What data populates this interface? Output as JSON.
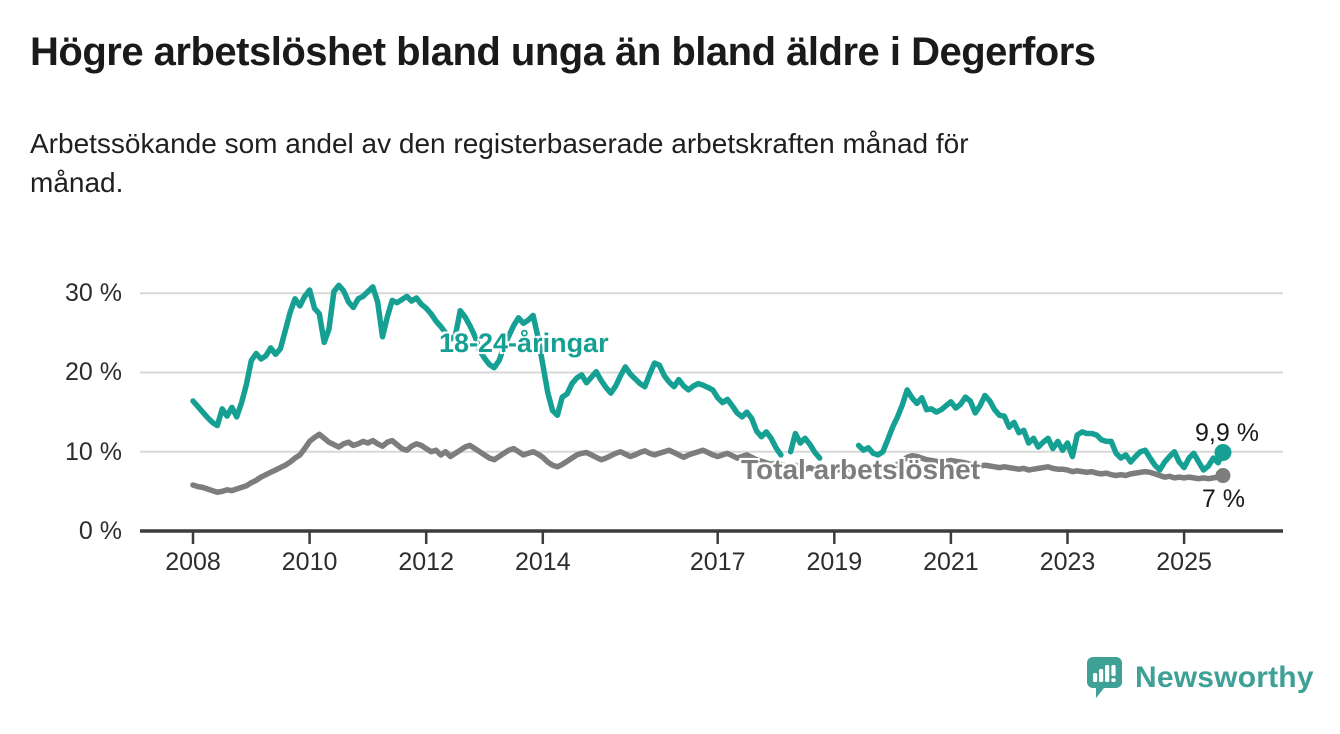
{
  "chart_data": {
    "type": "line",
    "title": "Högre arbetslöshet bland unga än bland äldre i Degerfors",
    "subtitle": "Arbetssökande som andel av den registerbaserade arbetskraften månad för månad.",
    "grid": "horizontal",
    "xlim": [
      2008,
      2026
    ],
    "ylim": [
      0,
      32
    ],
    "x_start": 2008,
    "points_per_year": 12,
    "x_tick_years": [
      2008,
      2010,
      2012,
      2014,
      2017,
      2019,
      2021,
      2023,
      2025
    ],
    "x_tick_labels": [
      "2008",
      "2010",
      "2012",
      "2014",
      "2017",
      "2019",
      "2021",
      "2023",
      "2025"
    ],
    "y_ticks": [
      {
        "value": 0,
        "label": "0 %"
      },
      {
        "value": 10,
        "label": "10 %"
      },
      {
        "value": 20,
        "label": "20 %"
      },
      {
        "value": 30,
        "label": "30 %"
      }
    ],
    "colors": {
      "youth": "#16a094",
      "total": "#7d7d7d",
      "grid": "#d8d8d8",
      "axis": "#3c3c3c"
    },
    "series": [
      {
        "id": "youth",
        "name": "18-24-åringar",
        "color": "#16a094",
        "end_value": 9.9,
        "end_label": "9,9 %",
        "values": [
          16.4,
          15.7,
          15.0,
          14.3,
          13.7,
          13.3,
          15.4,
          14.5,
          15.6,
          14.4,
          16.2,
          18.5,
          21.5,
          22.4,
          21.7,
          22.1,
          23.1,
          22.3,
          23.0,
          25.3,
          27.6,
          29.3,
          28.4,
          29.6,
          30.4,
          28.1,
          27.4,
          23.8,
          25.5,
          30.2,
          31.0,
          30.3,
          28.9,
          28.2,
          29.3,
          29.6,
          30.2,
          30.8,
          28.9,
          24.5,
          27.0,
          29.1,
          28.8,
          29.2,
          29.6,
          29.0,
          29.4,
          28.6,
          28.1,
          27.4,
          26.5,
          25.8,
          25.0,
          24.2,
          24.6,
          27.8,
          27.0,
          25.9,
          24.6,
          22.8,
          21.8,
          21.0,
          20.6,
          21.5,
          23.2,
          24.6,
          25.9,
          26.9,
          26.2,
          26.6,
          27.2,
          24.5,
          21.0,
          17.5,
          15.2,
          14.6,
          16.9,
          17.3,
          18.6,
          19.3,
          19.7,
          18.7,
          19.4,
          20.1,
          19.0,
          18.1,
          17.4,
          18.3,
          19.6,
          20.7,
          19.8,
          19.2,
          18.6,
          18.2,
          19.8,
          21.2,
          20.9,
          19.6,
          18.8,
          18.2,
          19.1,
          18.3,
          17.8,
          18.3,
          18.6,
          18.4,
          18.1,
          17.8,
          16.8,
          16.2,
          16.6,
          15.8,
          14.9,
          14.4,
          15.0,
          14.2,
          12.6,
          11.9,
          12.5,
          11.7,
          10.5,
          9.6,
          null,
          10.0,
          12.3,
          11.1,
          11.7,
          10.9,
          9.9,
          9.2,
          null,
          null,
          null,
          null,
          null,
          null,
          null,
          10.8,
          10.2,
          10.5,
          9.8,
          9.6,
          10.0,
          11.5,
          13.1,
          14.4,
          15.9,
          17.8,
          16.8,
          16.1,
          16.8,
          15.3,
          15.4,
          15.0,
          15.3,
          15.8,
          16.3,
          15.5,
          16.0,
          16.9,
          16.4,
          14.9,
          15.8,
          17.1,
          16.4,
          15.3,
          14.6,
          14.5,
          13.1,
          13.7,
          12.4,
          12.7,
          11.1,
          11.7,
          10.6,
          11.2,
          11.7,
          10.4,
          11.3,
          10.2,
          11.1,
          9.4,
          12.1,
          12.5,
          12.3,
          12.3,
          12.1,
          11.5,
          11.3,
          11.3,
          9.8,
          9.2,
          9.6,
          8.7,
          9.4,
          10.0,
          10.2,
          9.2,
          8.3,
          7.7,
          8.7,
          9.4,
          10.0,
          8.7,
          8.0,
          9.2,
          9.8,
          8.7,
          7.7,
          8.2,
          9.2,
          8.6,
          9.9
        ]
      },
      {
        "id": "total",
        "name": "Total arbetslöshet",
        "color": "#7d7d7d",
        "end_value": 7.0,
        "end_label": "7 %",
        "values": [
          5.8,
          5.6,
          5.5,
          5.3,
          5.1,
          4.9,
          5.0,
          5.2,
          5.1,
          5.3,
          5.5,
          5.7,
          6.1,
          6.4,
          6.8,
          7.1,
          7.4,
          7.7,
          8.0,
          8.3,
          8.7,
          9.2,
          9.6,
          10.4,
          11.3,
          11.8,
          12.2,
          11.7,
          11.2,
          10.9,
          10.6,
          11.0,
          11.2,
          10.8,
          11.0,
          11.3,
          11.1,
          11.4,
          11.0,
          10.7,
          11.2,
          11.4,
          10.9,
          10.4,
          10.2,
          10.7,
          11.0,
          10.8,
          10.4,
          10.0,
          10.2,
          9.6,
          10.0,
          9.4,
          9.8,
          10.2,
          10.6,
          10.8,
          10.4,
          10.0,
          9.6,
          9.2,
          9.0,
          9.4,
          9.8,
          10.2,
          10.4,
          10.0,
          9.6,
          9.8,
          10.0,
          9.7,
          9.3,
          8.7,
          8.3,
          8.1,
          8.4,
          8.8,
          9.2,
          9.6,
          9.8,
          9.9,
          9.6,
          9.3,
          9.0,
          9.2,
          9.5,
          9.8,
          10.0,
          9.7,
          9.4,
          9.6,
          9.9,
          10.1,
          9.8,
          9.6,
          9.8,
          10.0,
          10.2,
          9.9,
          9.6,
          9.3,
          9.6,
          9.8,
          10.0,
          10.2,
          9.9,
          9.6,
          9.4,
          9.6,
          9.8,
          9.5,
          9.2,
          9.4,
          9.6,
          9.3,
          9.0,
          8.8,
          8.6,
          8.4,
          8.6,
          8.4,
          8.2,
          8.1,
          8.3,
          8.0,
          7.8,
          8.0,
          7.7,
          7.9,
          7.7,
          7.8,
          7.6,
          7.8,
          7.7,
          7.9,
          7.7,
          7.9,
          8.1,
          7.9,
          7.7,
          7.9,
          8.1,
          8.3,
          8.1,
          8.4,
          8.8,
          9.3,
          9.5,
          9.4,
          9.2,
          9.0,
          8.9,
          8.8,
          8.7,
          8.8,
          8.9,
          8.8,
          8.7,
          8.6,
          8.4,
          8.3,
          8.2,
          8.3,
          8.2,
          8.1,
          8.0,
          8.1,
          8.0,
          7.9,
          7.8,
          7.9,
          7.7,
          7.8,
          7.9,
          8.0,
          8.1,
          7.9,
          7.8,
          7.8,
          7.7,
          7.5,
          7.6,
          7.5,
          7.4,
          7.5,
          7.3,
          7.2,
          7.3,
          7.1,
          7.0,
          7.1,
          7.0,
          7.2,
          7.3,
          7.4,
          7.5,
          7.4,
          7.2,
          7.0,
          6.8,
          6.9,
          6.7,
          6.8,
          6.7,
          6.8,
          6.7,
          6.6,
          6.7,
          6.6,
          6.7,
          6.8,
          7.0
        ]
      }
    ]
  },
  "footer": {
    "brand": "Newsworthy",
    "logo_icon": "newsworthy-speech-bubble-bar-chart-icon"
  }
}
